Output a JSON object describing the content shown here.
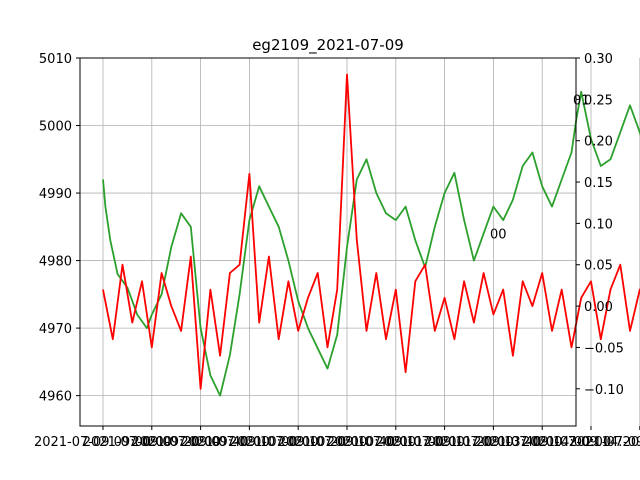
{
  "chart_data": {
    "type": "line",
    "title": "eg2109_2021-07-09",
    "grid": true,
    "x_tick_labels": [
      "2021-07-09 09:00:00",
      "2021-07-09 09:20:00",
      "2021-07-09 09:40:00",
      "2021-07-09 10:00:00",
      "2021-07-09 10:20:00",
      "2021-07-09 10:40:00",
      "2021-07-09 11:00:00",
      "2021-07-09 11:20:00",
      "2021-07-09 13:40:00",
      "2021-07-09 14:00:00",
      "2021-07-09 14:20:00",
      "2021-07-09 14:54:02."
    ],
    "y_left": {
      "ylim": [
        4955.5,
        5010.0
      ],
      "ticks": [
        4960,
        4970,
        4980,
        4990,
        5000,
        5010
      ]
    },
    "y_right": {
      "ylim": [
        -0.145,
        0.3
      ],
      "ticks": [
        -0.1,
        -0.05,
        0.0,
        0.05,
        0.1,
        0.15,
        0.2,
        0.25,
        0.3
      ],
      "tick_labels": [
        "−0.10",
        "−0.05",
        "0.00",
        "0.05",
        "0.10",
        "0.15",
        "0.20",
        "0.25",
        "0.30"
      ]
    },
    "annotations": [
      {
        "text": "01",
        "x_index": 9.8,
        "y_right": 0.25
      },
      {
        "text": "00",
        "x_index": 8.1,
        "y_right": 0.088
      }
    ],
    "series": [
      {
        "axis": "left",
        "color": "#2ca02c",
        "x_index": [
          0.0,
          0.05,
          0.15,
          0.3,
          0.5,
          0.7,
          0.9,
          1.0,
          1.2,
          1.4,
          1.6,
          1.8,
          2.0,
          2.2,
          2.4,
          2.6,
          2.8,
          3.0,
          3.2,
          3.4,
          3.6,
          3.8,
          4.0,
          4.2,
          4.4,
          4.6,
          4.8,
          5.0,
          5.2,
          5.4,
          5.6,
          5.8,
          6.0,
          6.2,
          6.4,
          6.6,
          6.8,
          7.0,
          7.2,
          7.4,
          7.6,
          7.8,
          8.0,
          8.2,
          8.4,
          8.6,
          8.8,
          9.0,
          9.2,
          9.4,
          9.6,
          9.7,
          9.8,
          10.0,
          10.2,
          10.4,
          10.6,
          10.8,
          11.0,
          11.2,
          11.4,
          11.6,
          11.8,
          12.0
        ],
        "y": [
          4992,
          4988,
          4983,
          4978,
          4976,
          4972,
          4970,
          4972,
          4975,
          4982,
          4987,
          4985,
          4970,
          4963,
          4960,
          4966,
          4975,
          4986,
          4991,
          4988,
          4985,
          4980,
          4974,
          4970,
          4967,
          4964,
          4969,
          4982,
          4992,
          4995,
          4990,
          4987,
          4986,
          4988,
          4983,
          4979,
          4985,
          4990,
          4993,
          4986,
          4980,
          4984,
          4988,
          4986,
          4989,
          4994,
          4996,
          4991,
          4988,
          4992,
          4996,
          5001,
          5005,
          4998,
          4994,
          4995,
          4999,
          5003,
          4999,
          4994,
          4989,
          4985,
          4987,
          4988
        ]
      },
      {
        "axis": "right",
        "color": "#ff0000",
        "x_index": [
          0.0,
          0.2,
          0.4,
          0.6,
          0.8,
          1.0,
          1.2,
          1.4,
          1.6,
          1.8,
          2.0,
          2.2,
          2.4,
          2.6,
          2.8,
          3.0,
          3.2,
          3.4,
          3.6,
          3.8,
          4.0,
          4.2,
          4.4,
          4.6,
          4.8,
          5.0,
          5.2,
          5.4,
          5.6,
          5.8,
          6.0,
          6.2,
          6.4,
          6.6,
          6.8,
          7.0,
          7.2,
          7.4,
          7.6,
          7.8,
          8.0,
          8.2,
          8.4,
          8.6,
          8.8,
          9.0,
          9.2,
          9.4,
          9.6,
          9.8,
          10.0,
          10.2,
          10.4,
          10.6,
          10.8,
          11.0,
          11.2,
          11.4,
          11.6,
          11.8,
          12.0
        ],
        "y": [
          0.02,
          -0.04,
          0.05,
          -0.02,
          0.03,
          -0.05,
          0.04,
          0.0,
          -0.03,
          0.06,
          -0.1,
          0.02,
          -0.06,
          0.04,
          0.05,
          0.16,
          -0.02,
          0.06,
          -0.04,
          0.03,
          -0.03,
          0.01,
          0.04,
          -0.05,
          0.02,
          0.28,
          0.08,
          -0.03,
          0.04,
          -0.04,
          0.02,
          -0.08,
          0.03,
          0.05,
          -0.03,
          0.01,
          -0.04,
          0.03,
          -0.02,
          0.04,
          -0.01,
          0.02,
          -0.06,
          0.03,
          0.0,
          0.04,
          -0.03,
          0.02,
          -0.05,
          0.01,
          0.03,
          -0.04,
          0.02,
          0.05,
          -0.03,
          0.02,
          -0.02,
          0.01,
          -0.04,
          0.0,
          -0.02
        ]
      }
    ]
  }
}
